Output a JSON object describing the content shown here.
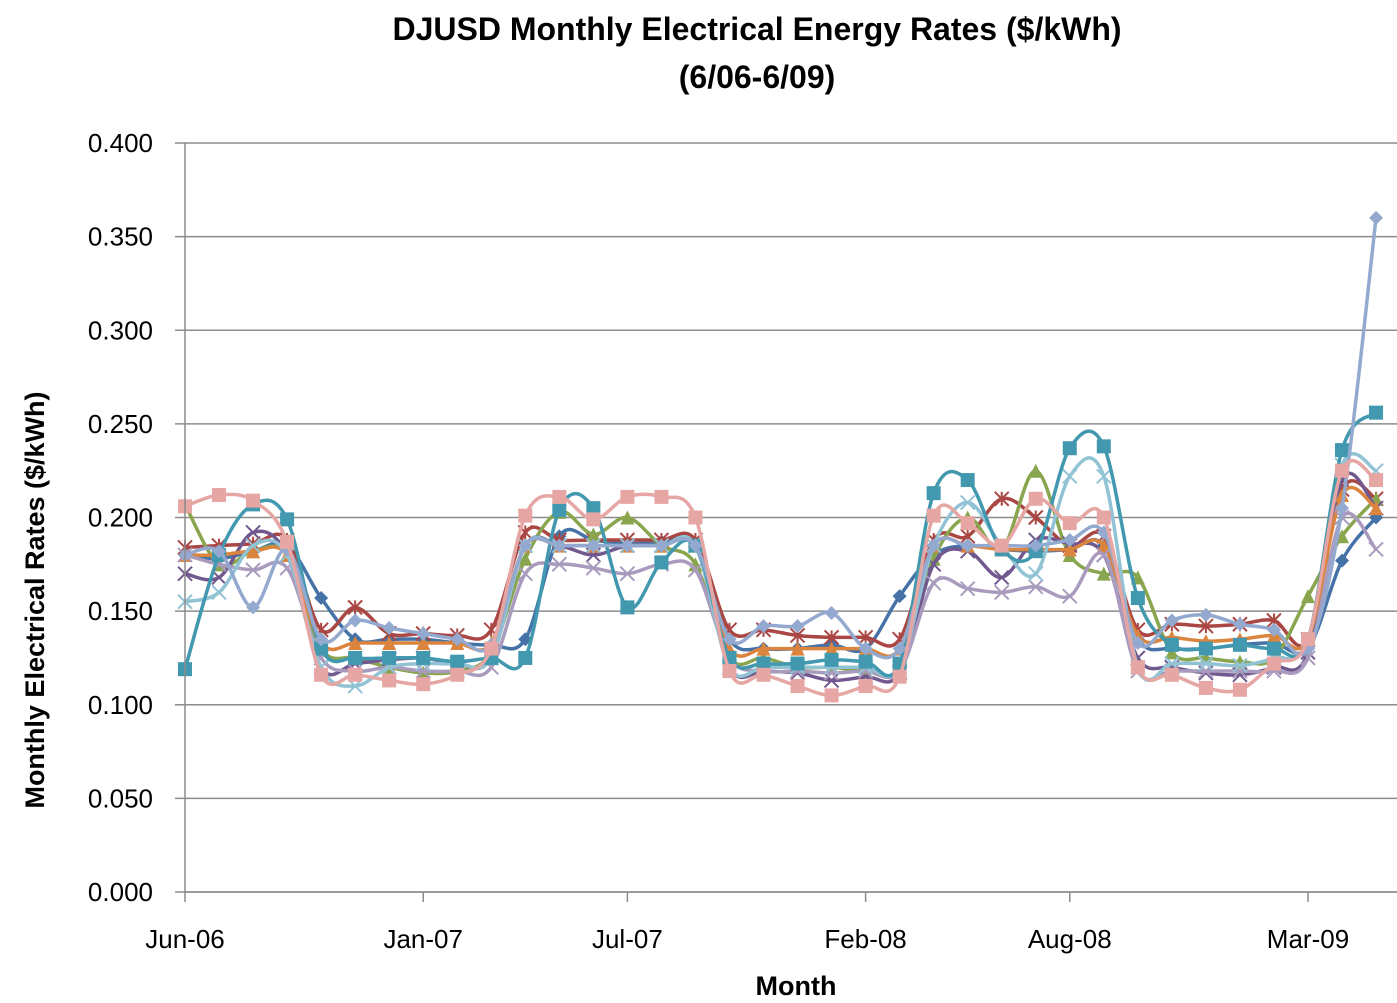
{
  "chart_data": {
    "type": "line",
    "title": "DJUSD Monthly Electrical Energy Rates ($/kWh)",
    "subtitle": "(6/06-6/09)",
    "x_label": "Month",
    "y_label": "Monthly Electrical Rates ($/kWh)",
    "categories": [
      "Jun-06",
      null,
      null,
      null,
      null,
      null,
      null,
      "Jan-07",
      null,
      null,
      null,
      null,
      null,
      "Jul-07",
      null,
      null,
      null,
      null,
      null,
      null,
      "Feb-08",
      null,
      null,
      null,
      null,
      null,
      "Aug-08",
      null,
      null,
      null,
      null,
      null,
      null,
      "Mar-09",
      null,
      null
    ],
    "ylim": [
      0,
      0.4
    ],
    "yticks": [
      {
        "value": 0,
        "label": "0.000"
      },
      {
        "value": 0.05,
        "label": "0.050"
      },
      {
        "value": 0.1,
        "label": "0.100"
      },
      {
        "value": 0.15,
        "label": "0.150"
      },
      {
        "value": 0.2,
        "label": "0.200"
      },
      {
        "value": 0.25,
        "label": "0.250"
      },
      {
        "value": 0.3,
        "label": "0.300"
      },
      {
        "value": 0.35,
        "label": "0.350"
      },
      {
        "value": 0.4,
        "label": "0.400"
      }
    ],
    "grid": true,
    "series": [
      {
        "color": "#4572a7",
        "marker": "diamond",
        "values": [
          0.18,
          0.178,
          0.182,
          0.185,
          0.157,
          0.135,
          0.135,
          0.135,
          0.133,
          0.132,
          0.135,
          0.19,
          0.188,
          0.186,
          0.187,
          0.186,
          0.135,
          0.13,
          0.13,
          0.132,
          0.13,
          0.158,
          0.18,
          0.185,
          0.183,
          0.182,
          0.183,
          0.185,
          0.135,
          0.13,
          0.13,
          0.132,
          0.133,
          0.13,
          0.177,
          0.2
        ]
      },
      {
        "color": "#aa4643",
        "marker": "star",
        "values": [
          0.184,
          0.185,
          0.186,
          0.188,
          0.14,
          0.152,
          0.138,
          0.138,
          0.137,
          0.14,
          0.192,
          0.188,
          0.188,
          0.188,
          0.188,
          0.188,
          0.14,
          0.14,
          0.137,
          0.136,
          0.136,
          0.135,
          0.188,
          0.19,
          0.21,
          0.2,
          0.185,
          0.19,
          0.14,
          0.143,
          0.142,
          0.143,
          0.145,
          0.135,
          0.215,
          0.21
        ]
      },
      {
        "color": "#89a54e",
        "marker": "triangle",
        "values": [
          0.207,
          0.175,
          0.182,
          0.18,
          0.13,
          0.125,
          0.12,
          0.117,
          0.118,
          0.128,
          0.178,
          0.203,
          0.191,
          0.2,
          0.185,
          0.175,
          0.125,
          0.125,
          0.12,
          0.12,
          0.118,
          0.12,
          0.178,
          0.2,
          0.183,
          0.225,
          0.18,
          0.17,
          0.168,
          0.128,
          0.125,
          0.123,
          0.125,
          0.158,
          0.19,
          0.21
        ]
      },
      {
        "color": "#71588f",
        "marker": "x",
        "values": [
          0.17,
          0.168,
          0.192,
          0.18,
          0.12,
          0.122,
          0.124,
          0.125,
          0.122,
          0.125,
          0.185,
          0.185,
          0.18,
          0.185,
          0.185,
          0.185,
          0.12,
          0.118,
          0.117,
          0.113,
          0.115,
          0.117,
          0.175,
          0.182,
          0.168,
          0.188,
          0.186,
          0.18,
          0.125,
          0.12,
          0.117,
          0.116,
          0.12,
          0.128,
          0.22,
          0.205
        ]
      },
      {
        "color": "#db843d",
        "marker": "triangle",
        "values": [
          0.18,
          0.18,
          0.182,
          0.18,
          0.133,
          0.133,
          0.133,
          0.133,
          0.133,
          0.133,
          0.185,
          0.185,
          0.185,
          0.185,
          0.185,
          0.185,
          0.13,
          0.13,
          0.13,
          0.13,
          0.13,
          0.13,
          0.185,
          0.185,
          0.183,
          0.183,
          0.183,
          0.185,
          0.137,
          0.136,
          0.134,
          0.135,
          0.137,
          0.135,
          0.212,
          0.205
        ]
      },
      {
        "color": "#a99bbd",
        "marker": "x",
        "values": [
          0.18,
          0.175,
          0.172,
          0.173,
          0.125,
          0.118,
          0.12,
          0.118,
          0.118,
          0.12,
          0.17,
          0.175,
          0.173,
          0.17,
          0.175,
          0.172,
          0.125,
          0.118,
          0.118,
          0.117,
          0.118,
          0.118,
          0.165,
          0.162,
          0.16,
          0.163,
          0.158,
          0.18,
          0.118,
          0.118,
          0.118,
          0.118,
          0.118,
          0.125,
          0.2,
          0.183
        ]
      },
      {
        "color": "#91c3d5",
        "marker": "x",
        "values": [
          0.155,
          0.16,
          0.185,
          0.18,
          0.12,
          0.11,
          0.12,
          0.122,
          0.122,
          0.125,
          0.185,
          0.185,
          0.185,
          0.185,
          0.185,
          0.185,
          0.12,
          0.12,
          0.12,
          0.12,
          0.12,
          0.12,
          0.185,
          0.208,
          0.185,
          0.17,
          0.222,
          0.222,
          0.12,
          0.122,
          0.122,
          0.121,
          0.125,
          0.135,
          0.228,
          0.225
        ]
      },
      {
        "color": "#4198af",
        "marker": "square",
        "values": [
          0.119,
          0.18,
          0.207,
          0.199,
          0.13,
          0.125,
          0.125,
          0.125,
          0.123,
          0.125,
          0.125,
          0.204,
          0.205,
          0.152,
          0.176,
          0.185,
          0.125,
          0.122,
          0.122,
          0.124,
          0.123,
          0.122,
          0.213,
          0.22,
          0.183,
          0.182,
          0.237,
          0.238,
          0.157,
          0.132,
          0.13,
          0.132,
          0.13,
          0.135,
          0.236,
          0.256
        ]
      },
      {
        "color": "#93a9cf",
        "marker": "diamond",
        "values": [
          0.18,
          0.182,
          0.152,
          0.183,
          0.135,
          0.145,
          0.141,
          0.138,
          0.135,
          0.132,
          0.185,
          0.185,
          0.185,
          0.185,
          0.185,
          0.185,
          0.135,
          0.142,
          0.142,
          0.149,
          0.13,
          0.13,
          0.185,
          0.185,
          0.185,
          0.185,
          0.188,
          0.192,
          0.133,
          0.145,
          0.148,
          0.143,
          0.14,
          0.13,
          0.205,
          0.36
        ]
      },
      {
        "color": "#e6a6a4",
        "marker": "square",
        "values": [
          0.206,
          0.212,
          0.209,
          0.187,
          0.116,
          0.116,
          0.113,
          0.111,
          0.116,
          0.13,
          0.201,
          0.211,
          0.199,
          0.211,
          0.211,
          0.2,
          0.118,
          0.116,
          0.11,
          0.105,
          0.11,
          0.115,
          0.201,
          0.197,
          0.185,
          0.21,
          0.197,
          0.2,
          0.12,
          0.116,
          0.109,
          0.108,
          0.122,
          0.135,
          0.225,
          0.22
        ]
      }
    ]
  }
}
